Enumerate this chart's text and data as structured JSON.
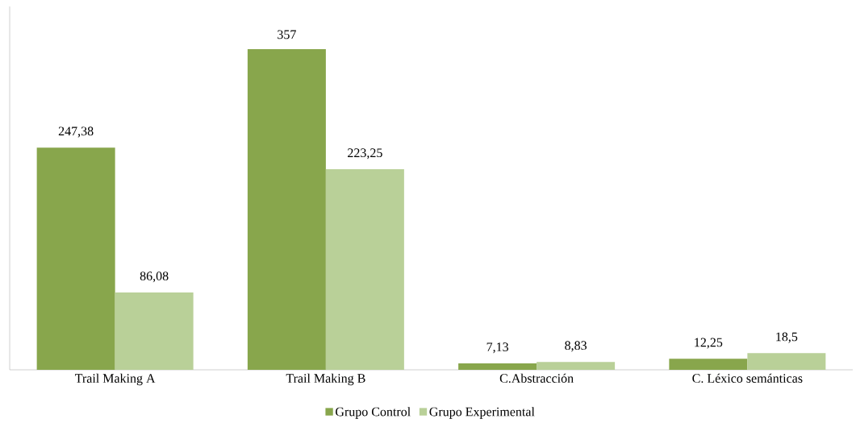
{
  "chart_data": {
    "type": "bar",
    "categories": [
      "Trail Making A",
      "Trail Making B",
      "C.Abstracción",
      "C. Léxico semánticas"
    ],
    "series": [
      {
        "name": "Grupo Control",
        "color": "#88a64c",
        "values": [
          247.38,
          357,
          7.13,
          12.25
        ],
        "value_labels": [
          "247,38",
          "357",
          "7,13",
          "12,25"
        ]
      },
      {
        "name": "Grupo Experimental",
        "color": "#b9d098",
        "values": [
          86.08,
          223.25,
          8.83,
          18.5
        ],
        "value_labels": [
          "86,08",
          "223,25",
          "8,83",
          "18,5"
        ]
      }
    ],
    "legend": "bottom"
  }
}
